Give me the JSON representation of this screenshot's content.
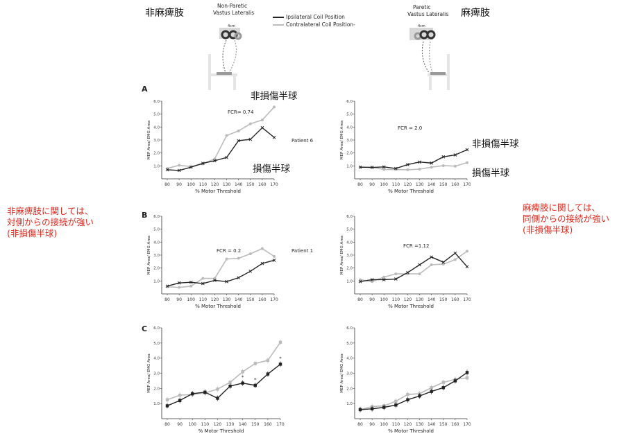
{
  "header": {
    "left_jp": "非麻痺肢",
    "right_jp": "麻痺肢",
    "left_muscle": [
      "Non-Paretic",
      "Vastus Lateralis"
    ],
    "right_muscle": [
      "Paretic",
      "Vastus Lateralis"
    ],
    "coil_dist": "4cm",
    "legend": [
      {
        "label": "Ipsilateral Coil Position",
        "color": "#222222"
      },
      {
        "label": "Contralateral Coil Position-",
        "color": "#bbbbbb"
      }
    ]
  },
  "notes": {
    "left": [
      "非麻痺肢に関しては、",
      "対側からの接続が強い",
      "(非損傷半球)"
    ],
    "right": [
      "麻痺肢に関しては、",
      "同側からの接続が強い",
      "(非損傷半球)"
    ],
    "color": "#e0261b"
  },
  "labels": {
    "A_contra": "非損傷半球",
    "A_ipsi": "損傷半球",
    "A_right_ipsi": "非損傷半球",
    "A_right_contra": "損傷半球"
  },
  "colors": {
    "ipsi": "#222222",
    "contra": "#bbbbbb"
  },
  "chart_data": [
    {
      "type": "line",
      "panel": "A",
      "side": "non-paretic",
      "annotation": "FCR= 0.74",
      "patient": "Patient 6",
      "xlabel": "% Motor Threshold",
      "ylabel": "MEP Area/ EMG Area",
      "x": [
        80,
        90,
        100,
        110,
        120,
        130,
        140,
        150,
        160,
        170
      ],
      "ylim": [
        0,
        6
      ],
      "yticks": [
        1.0,
        2.0,
        3.0,
        4.0,
        5.0,
        6.0
      ],
      "series": [
        {
          "name": "Ipsilateral Coil Position",
          "values": [
            0.7,
            0.65,
            0.9,
            1.2,
            1.4,
            1.65,
            2.95,
            3.05,
            3.95,
            3.2
          ]
        },
        {
          "name": "Contralateral Coil Position",
          "values": [
            0.8,
            1.05,
            0.95,
            1.15,
            1.55,
            3.35,
            3.7,
            4.25,
            4.55,
            5.55
          ]
        }
      ]
    },
    {
      "type": "line",
      "panel": "A",
      "side": "paretic",
      "annotation": "FCR = 2.0",
      "xlabel": "% Motor Threshold",
      "ylabel": "MEP Area/ EMG Area",
      "x": [
        80,
        90,
        100,
        110,
        120,
        130,
        140,
        150,
        160,
        170
      ],
      "ylim": [
        0,
        6
      ],
      "yticks": [
        1.0,
        2.0,
        3.0,
        4.0,
        5.0,
        6.0
      ],
      "series": [
        {
          "name": "Ipsilateral Coil Position",
          "values": [
            0.9,
            0.88,
            0.92,
            0.8,
            1.1,
            1.3,
            1.22,
            1.7,
            1.85,
            2.25
          ]
        },
        {
          "name": "Contralateral Coil Position",
          "values": [
            0.9,
            0.9,
            0.72,
            0.72,
            0.7,
            0.75,
            0.9,
            1.02,
            0.98,
            1.25
          ]
        }
      ]
    },
    {
      "type": "line",
      "panel": "B",
      "side": "non-paretic",
      "annotation": "FCR = 0.2",
      "patient": "Patient 1",
      "xlabel": "% Motor Threshold",
      "ylabel": "MEP Area/ EMG Area",
      "x": [
        80,
        90,
        100,
        110,
        120,
        130,
        140,
        150,
        160,
        170
      ],
      "ylim": [
        0,
        6
      ],
      "yticks": [
        1.0,
        2.0,
        3.0,
        4.0,
        5.0,
        6.0
      ],
      "series": [
        {
          "name": "Ipsilateral Coil Position",
          "values": [
            0.6,
            0.85,
            0.9,
            0.8,
            1.05,
            0.95,
            1.25,
            1.75,
            2.35,
            2.6
          ]
        },
        {
          "name": "Contralateral Coil Position",
          "values": [
            0.55,
            0.5,
            0.6,
            1.2,
            1.2,
            2.7,
            2.75,
            3.1,
            3.5,
            2.9
          ]
        }
      ]
    },
    {
      "type": "line",
      "panel": "B",
      "side": "paretic",
      "annotation": "FCR =1.12",
      "xlabel": "% Motor Threshold",
      "ylabel": "MEP Area/ EMG Area",
      "x": [
        80,
        90,
        100,
        110,
        120,
        130,
        140,
        150,
        160,
        170
      ],
      "ylim": [
        0,
        6
      ],
      "yticks": [
        1.0,
        2.0,
        3.0,
        4.0,
        5.0,
        6.0
      ],
      "series": [
        {
          "name": "Ipsilateral Coil Position",
          "values": [
            0.95,
            1.1,
            1.1,
            1.15,
            1.65,
            2.25,
            2.85,
            2.45,
            3.15,
            2.1
          ]
        },
        {
          "name": "Contralateral Coil Position",
          "values": [
            1.1,
            0.95,
            1.3,
            1.55,
            1.55,
            1.55,
            2.25,
            2.3,
            2.65,
            3.3
          ]
        }
      ]
    },
    {
      "type": "line",
      "panel": "C",
      "side": "non-paretic",
      "xlabel": "% Motor Threshold",
      "ylabel": "MEP Area/ EMG Area",
      "x": [
        80,
        90,
        100,
        110,
        120,
        130,
        140,
        150,
        160,
        170
      ],
      "ylim": [
        0,
        6
      ],
      "yticks": [
        1.0,
        2.0,
        3.0,
        4.0,
        5.0,
        6.0
      ],
      "significance": [
        {
          "x": 140,
          "label": "*"
        },
        {
          "x": 150,
          "label": "*"
        },
        {
          "x": 170,
          "label": "*"
        }
      ],
      "series": [
        {
          "name": "Ipsilateral Coil Position",
          "values": [
            0.85,
            1.2,
            1.65,
            1.75,
            1.35,
            2.15,
            2.35,
            2.2,
            2.95,
            3.6
          ]
        },
        {
          "name": "Contralateral Coil Position",
          "values": [
            1.25,
            1.55,
            1.6,
            1.7,
            1.95,
            2.4,
            3.1,
            3.65,
            3.85,
            5.05
          ]
        }
      ]
    },
    {
      "type": "line",
      "panel": "C",
      "side": "paretic",
      "xlabel": "% Motor Threshold",
      "ylabel": "MEP Area/ EMG Area",
      "x": [
        80,
        90,
        100,
        110,
        120,
        130,
        140,
        150,
        160,
        170
      ],
      "ylim": [
        0,
        6
      ],
      "yticks": [
        1.0,
        2.0,
        3.0,
        4.0,
        5.0,
        6.0
      ],
      "series": [
        {
          "name": "Ipsilateral Coil Position",
          "values": [
            0.6,
            0.65,
            0.75,
            0.9,
            1.25,
            1.5,
            1.8,
            2.05,
            2.5,
            3.05
          ]
        },
        {
          "name": "Contralateral Coil Position",
          "values": [
            0.6,
            0.8,
            0.85,
            1.15,
            1.6,
            1.65,
            2.05,
            2.4,
            2.6,
            2.7
          ]
        }
      ]
    }
  ]
}
